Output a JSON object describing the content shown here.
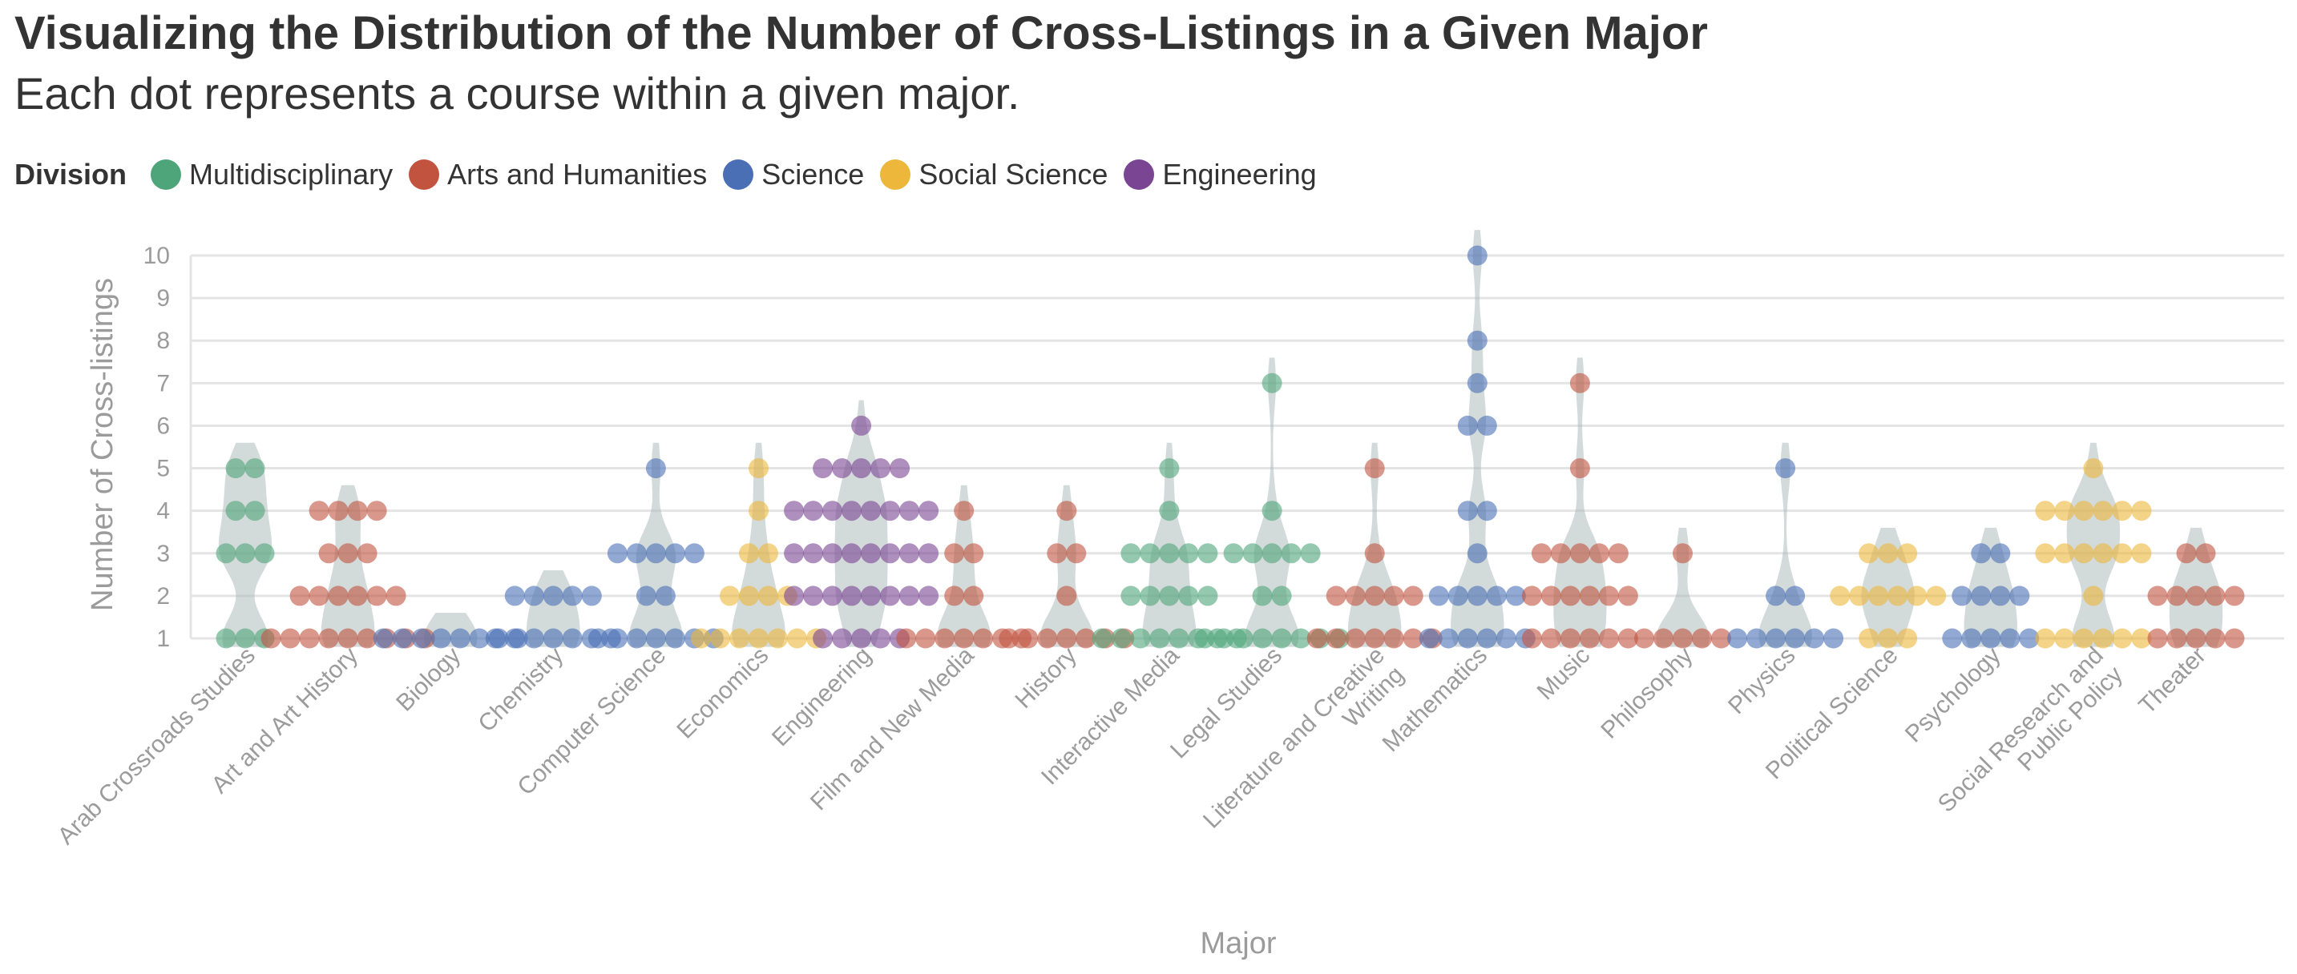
{
  "chart_data": {
    "type": "scatter",
    "title": "Visualizing the Distribution of the Number of Cross-Listings in a Given Major",
    "subtitle": "Each dot represents a course within a given major.",
    "xlabel": "Major",
    "ylabel": "Number of Cross-listings",
    "ylim": [
      1,
      10
    ],
    "yticks": [
      "1",
      "2",
      "3",
      "4",
      "5",
      "6",
      "7",
      "8",
      "9",
      "10"
    ],
    "grid": true,
    "legend": {
      "title": "Division",
      "position": "top-left",
      "items": [
        {
          "label": "Multidisciplinary",
          "color": "#4fa57a"
        },
        {
          "label": "Arts and Humanities",
          "color": "#c2533f"
        },
        {
          "label": "Science",
          "color": "#4a6fb5"
        },
        {
          "label": "Social Science",
          "color": "#ecb73a"
        },
        {
          "label": "Engineering",
          "color": "#7a4593"
        }
      ]
    },
    "majors": [
      {
        "name": "Arab Crossroads Studies",
        "lines": [
          "Arab Crossroads Studies"
        ],
        "division": "Multidisciplinary",
        "counts": {
          "1": 3,
          "3": 3,
          "4": 2,
          "5": 2
        }
      },
      {
        "name": "Art and Art History",
        "lines": [
          "Art and Art History"
        ],
        "division": "Arts and Humanities",
        "counts": {
          "1": 9,
          "2": 6,
          "3": 3,
          "4": 4
        }
      },
      {
        "name": "Biology",
        "lines": [
          "Biology"
        ],
        "division": "Science",
        "counts": {
          "1": 8
        }
      },
      {
        "name": "Chemistry",
        "lines": [
          "Chemistry"
        ],
        "division": "Science",
        "counts": {
          "1": 7,
          "2": 5
        }
      },
      {
        "name": "Computer Science",
        "lines": [
          "Computer Science"
        ],
        "division": "Science",
        "counts": {
          "1": 7,
          "2": 2,
          "3": 5,
          "5": 1
        }
      },
      {
        "name": "Economics",
        "lines": [
          "Economics"
        ],
        "division": "Social Science",
        "counts": {
          "1": 7,
          "2": 4,
          "3": 2,
          "4": 1,
          "5": 1
        }
      },
      {
        "name": "Engineering",
        "lines": [
          "Engineering"
        ],
        "division": "Engineering",
        "counts": {
          "1": 5,
          "2": 8,
          "3": 8,
          "4": 8,
          "5": 5,
          "6": 1
        }
      },
      {
        "name": "Film and New Media",
        "lines": [
          "Film and New Media"
        ],
        "division": "Arts and Humanities",
        "counts": {
          "1": 7,
          "2": 2,
          "3": 2,
          "4": 1
        }
      },
      {
        "name": "History",
        "lines": [
          "History"
        ],
        "division": "Arts and Humanities",
        "counts": {
          "1": 7,
          "2": 1,
          "3": 2,
          "4": 1
        }
      },
      {
        "name": "Interactive Media",
        "lines": [
          "Interactive Media"
        ],
        "division": "Multidisciplinary",
        "counts": {
          "1": 8,
          "2": 5,
          "3": 5,
          "4": 1,
          "5": 1
        }
      },
      {
        "name": "Legal Studies",
        "lines": [
          "Legal Studies"
        ],
        "division": "Multidisciplinary",
        "counts": {
          "1": 8,
          "2": 2,
          "3": 5,
          "4": 1,
          "7": 1
        }
      },
      {
        "name": "Literature and Creative Writing",
        "lines": [
          "Literature and Creative",
          "Writing"
        ],
        "division": "Arts and Humanities",
        "counts": {
          "1": 7,
          "2": 5,
          "3": 1,
          "5": 1
        }
      },
      {
        "name": "Mathematics",
        "lines": [
          "Mathematics"
        ],
        "division": "Science",
        "counts": {
          "1": 6,
          "2": 5,
          "3": 1,
          "4": 2,
          "6": 2,
          "7": 1,
          "8": 1,
          "10": 1
        }
      },
      {
        "name": "Music",
        "lines": [
          "Music"
        ],
        "division": "Arts and Humanities",
        "counts": {
          "1": 6,
          "2": 6,
          "3": 5,
          "5": 1,
          "7": 1
        }
      },
      {
        "name": "Philosophy",
        "lines": [
          "Philosophy"
        ],
        "division": "Arts and Humanities",
        "counts": {
          "1": 5,
          "3": 1
        }
      },
      {
        "name": "Physics",
        "lines": [
          "Physics"
        ],
        "division": "Science",
        "counts": {
          "1": 6,
          "2": 2,
          "5": 1
        }
      },
      {
        "name": "Political Science",
        "lines": [
          "Political Science"
        ],
        "division": "Social Science",
        "counts": {
          "1": 3,
          "2": 6,
          "3": 3
        }
      },
      {
        "name": "Psychology",
        "lines": [
          "Psychology"
        ],
        "division": "Science",
        "counts": {
          "1": 5,
          "2": 4,
          "3": 2
        }
      },
      {
        "name": "Social Research and Public Policy",
        "lines": [
          "Social Research and",
          "Public Policy"
        ],
        "division": "Social Science",
        "counts": {
          "1": 6,
          "2": 1,
          "3": 6,
          "4": 6,
          "5": 1
        }
      },
      {
        "name": "Theater",
        "lines": [
          "Theater"
        ],
        "division": "Arts and Humanities",
        "counts": {
          "1": 5,
          "2": 5,
          "3": 2
        }
      }
    ]
  }
}
